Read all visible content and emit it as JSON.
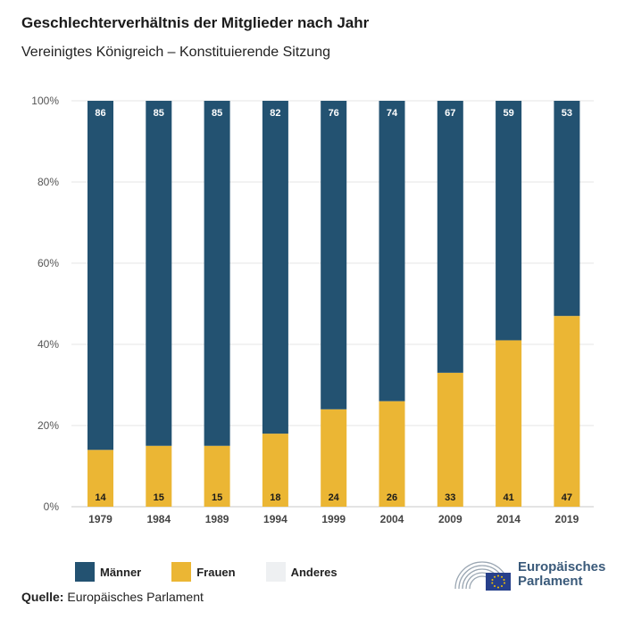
{
  "header": {
    "title": "Geschlechterverhältnis der Mitglieder nach Jahr",
    "subtitle": "Vereinigtes Königreich – Konstituierende Sitzung"
  },
  "chart_data": {
    "type": "bar",
    "stacked": true,
    "categories": [
      "1979",
      "1984",
      "1989",
      "1994",
      "1999",
      "2004",
      "2009",
      "2014",
      "2019"
    ],
    "series": [
      {
        "name": "Frauen",
        "color": "#ebb634",
        "values": [
          14,
          15,
          15,
          18,
          24,
          26,
          33,
          41,
          47
        ]
      },
      {
        "name": "Männer",
        "color": "#235271",
        "values": [
          86,
          85,
          85,
          82,
          76,
          74,
          67,
          59,
          53
        ]
      }
    ],
    "y_ticks": [
      "0%",
      "20%",
      "40%",
      "60%",
      "80%",
      "100%"
    ],
    "ylim": [
      0,
      100
    ],
    "grid": true,
    "legend_position": "bottom-left"
  },
  "legend": {
    "items": [
      {
        "label": "Männer",
        "color": "#235271"
      },
      {
        "label": "Frauen",
        "color": "#ebb634"
      },
      {
        "label": "Anderes",
        "color": "#eef0f2"
      }
    ]
  },
  "source": {
    "label": "Quelle:",
    "text": "Europäisches Parlament"
  },
  "logo": {
    "line1": "Europäisches",
    "line2": "Parlament"
  }
}
